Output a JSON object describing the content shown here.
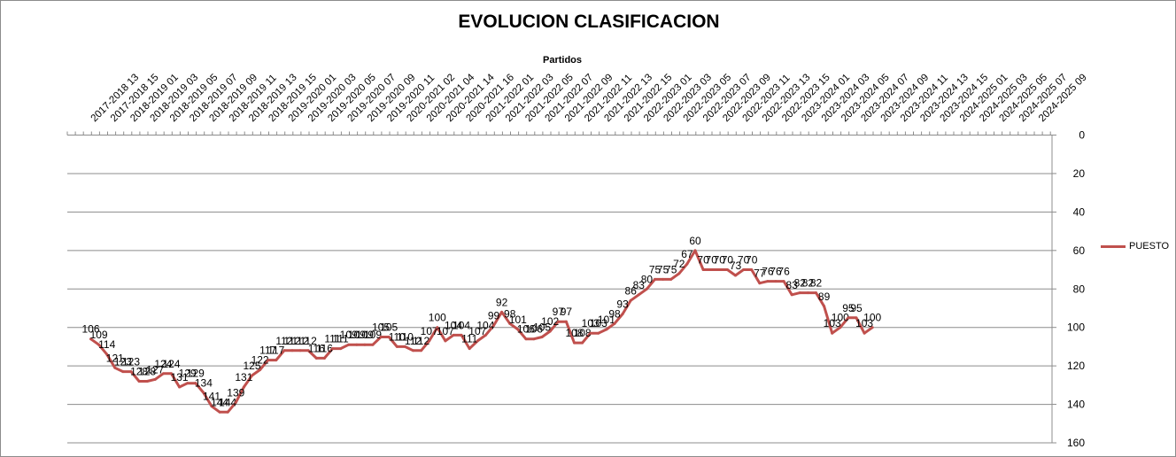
{
  "chart_data": {
    "type": "line",
    "title": "EVOLUCION CLASIFICACION",
    "xlabel": "Partidos",
    "ylabel": "",
    "ylim": [
      0,
      160
    ],
    "y_reversed": true,
    "y_ticks": [
      0,
      20,
      40,
      60,
      80,
      100,
      120,
      140,
      160
    ],
    "grid": "horizontal",
    "x_axis_position": "top",
    "y_axis_position": "right",
    "legend_position": "right",
    "x_tick_labels": [
      "2017-2018 13",
      "2017-2018 15",
      "2018-2019 01",
      "2018-2019 03",
      "2018-2019 05",
      "2018-2019 07",
      "2018-2019 09",
      "2018-2019 11",
      "2018-2019 13",
      "2018-2019 15",
      "2019-2020 01",
      "2019-2020 03",
      "2019-2020 05",
      "2019-2020 07",
      "2019-2020 09",
      "2019-2020 11",
      "2020-2021 02",
      "2020-2021 04",
      "2020-2021 14",
      "2020-2021 16",
      "2021-2022 01",
      "2021-2022 03",
      "2021-2022 05",
      "2021-2022 07",
      "2021-2022 09",
      "2021-2022 11",
      "2021-2022 13",
      "2021-2022 15",
      "2022-2023 01",
      "2022-2023 03",
      "2022-2023 05",
      "2022-2023 07",
      "2022-2023 09",
      "2022-2023 11",
      "2022-2023 13",
      "2022-2023 15",
      "2023-2024 01",
      "2023-2024 03",
      "2023-2024 05",
      "2023-2024 07",
      "2023-2024 09",
      "2023-2024 11",
      "2023-2024 13",
      "2023-2024 15",
      "2024-2025 01",
      "2024-2025 03",
      "2024-2025 05",
      "2024-2025 07",
      "2024-2025 09"
    ],
    "series": [
      {
        "name": "PUESTO",
        "color": "#c0504d",
        "values": [
          106,
          109,
          114,
          121,
          123,
          123,
          128,
          128,
          127,
          124,
          124,
          131,
          129,
          129,
          134,
          141,
          144,
          144,
          139,
          131,
          125,
          122,
          117,
          117,
          112,
          112,
          112,
          112,
          116,
          116,
          111,
          111,
          109,
          109,
          109,
          109,
          105,
          105,
          110,
          110,
          112,
          112,
          107,
          100,
          107,
          104,
          104,
          111,
          107,
          104,
          99,
          92,
          98,
          101,
          106,
          106,
          105,
          102,
          97,
          97,
          108,
          108,
          103,
          103,
          101,
          98,
          93,
          86,
          83,
          80,
          75,
          75,
          75,
          72,
          67,
          60,
          70,
          70,
          70,
          70,
          73,
          70,
          70,
          77,
          76,
          76,
          76,
          83,
          82,
          82,
          82,
          89,
          103,
          100,
          95,
          95,
          103,
          100
        ]
      }
    ]
  },
  "legend": {
    "label": "PUESTO"
  }
}
